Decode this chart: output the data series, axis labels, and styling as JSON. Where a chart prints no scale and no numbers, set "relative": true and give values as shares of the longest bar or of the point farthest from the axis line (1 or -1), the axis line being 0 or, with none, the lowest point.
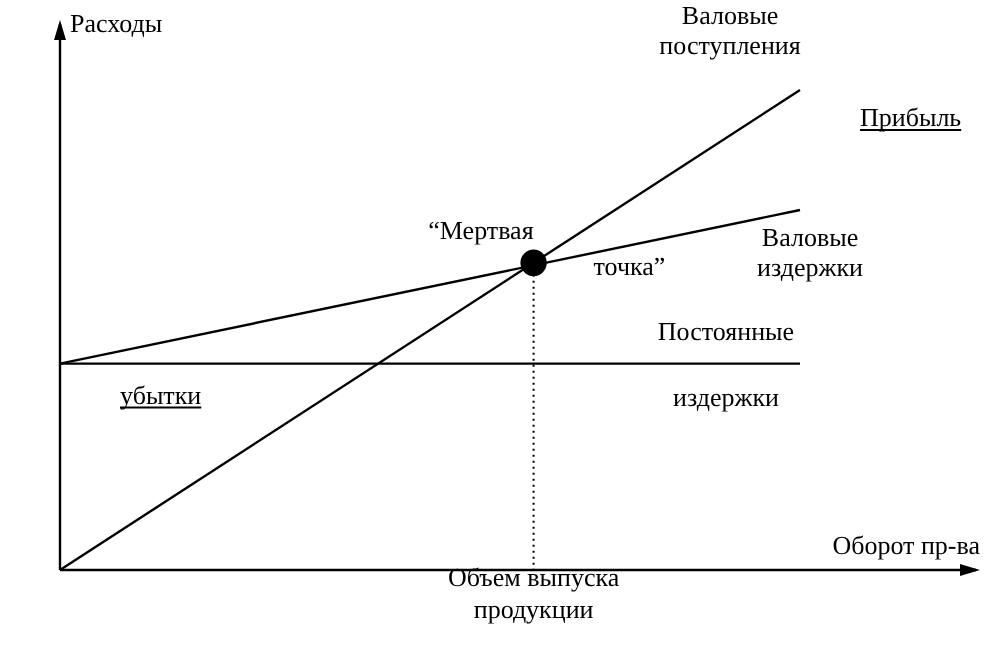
{
  "chart_data": {
    "type": "line",
    "relative": true,
    "xlabel": "Оборот пр-ва",
    "ylabel": "Расходы",
    "legend": false,
    "line_style": "solid",
    "marker": "none",
    "categories": [
      null,
      null,
      null,
      null,
      null,
      null,
      null,
      null,
      null,
      null,
      null,
      null,
      null,
      null,
      null,
      null,
      null,
      null,
      null,
      null,
      null,
      null,
      null,
      null,
      null,
      null
    ],
    "series": [
      {
        "name": "Валовые поступления",
        "color": "#000000",
        "values": [
          0,
          null,
          null,
          null,
          null,
          null,
          null,
          null,
          null,
          null,
          null,
          null,
          null,
          null,
          null,
          null,
          null,
          null,
          null,
          null,
          null,
          null,
          null,
          null,
          null,
          1
        ]
      },
      {
        "name": "Валовые издержки",
        "color": "#000000",
        "values": [
          0.43,
          null,
          null,
          null,
          null,
          null,
          null,
          null,
          null,
          null,
          null,
          null,
          null,
          null,
          null,
          null,
          null,
          null,
          null,
          null,
          null,
          null,
          null,
          null,
          null,
          0.75
        ]
      },
      {
        "name": "Постоянные издержки",
        "color": "#000000",
        "values": [
          0.43,
          null,
          null,
          null,
          null,
          null,
          null,
          null,
          null,
          null,
          null,
          null,
          null,
          null,
          null,
          null,
          null,
          null,
          null,
          null,
          null,
          null,
          null,
          null,
          null,
          0.43
        ]
      },
      {
        "marker": "circle",
        "color": "#000000",
        "values": [
          null,
          null,
          null,
          null,
          null,
          null,
          null,
          null,
          null,
          null,
          null,
          null,
          null,
          null,
          null,
          null,
          0.64,
          null,
          null,
          null,
          null,
          null,
          null,
          null,
          null,
          null
        ]
      }
    ],
    "annotations": [
      "“Мертвая точка”",
      "Прибыль",
      "убытки",
      "Объем выпуска продукции"
    ]
  }
}
